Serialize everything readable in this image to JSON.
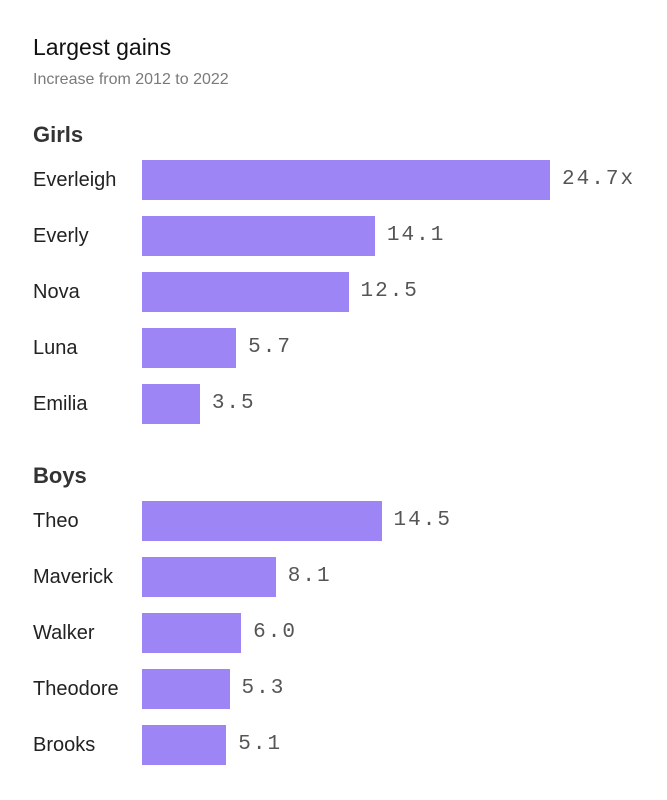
{
  "chart_data": {
    "type": "bar",
    "orientation": "horizontal",
    "title": "Largest gains",
    "subtitle": "Increase from 2012 to 2022",
    "bar_color": "#9d85f5",
    "groups": [
      {
        "name": "Girls",
        "categories": [
          "Everleigh",
          "Everly",
          "Nova",
          "Luna",
          "Emilia"
        ],
        "values": [
          24.7,
          14.1,
          12.5,
          5.7,
          3.5
        ],
        "value_labels": [
          "24.7x",
          "14.1",
          "12.5",
          "5.7",
          "3.5"
        ]
      },
      {
        "name": "Boys",
        "categories": [
          "Theo",
          "Maverick",
          "Walker",
          "Theodore",
          "Brooks"
        ],
        "values": [
          14.5,
          8.1,
          6.0,
          5.3,
          5.1
        ],
        "value_labels": [
          "14.5",
          "8.1",
          "6.0",
          "5.3",
          "5.1"
        ]
      }
    ]
  }
}
